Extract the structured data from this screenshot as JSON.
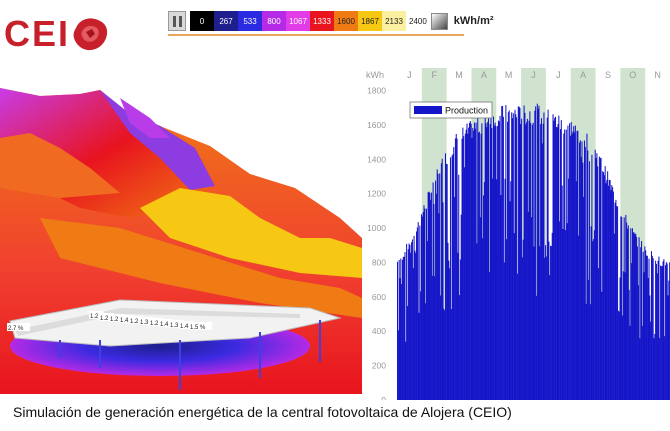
{
  "logo": {
    "text": "CEI",
    "brand_color": "#c8202a"
  },
  "legend": {
    "pause_icon": "pause-icon",
    "ticks": [
      "0",
      "267",
      "533",
      "800",
      "1067",
      "1333",
      "1600",
      "1867",
      "2133"
    ],
    "colors": [
      "#000000",
      "#1e1e8c",
      "#2a2ae0",
      "#b42ae6",
      "#e23ce8",
      "#e8141e",
      "#f07a14",
      "#f6c814",
      "#faf0a0"
    ],
    "text_colors": [
      "#ffffff",
      "#ffffff",
      "#ffffff",
      "#ffffff",
      "#ffffff",
      "#ffffff",
      "#222222",
      "#222222",
      "#222222"
    ],
    "last_tick": "2400",
    "unit": "kWh/m²",
    "icon": "gradient-square-icon"
  },
  "terrain": {
    "labels": [
      "2.7 %",
      "1.2",
      "1.2",
      "1.2",
      "1.4",
      "1.2",
      "1.3",
      "1.2",
      "1.4",
      "1.3",
      "1.4",
      "1.5 %"
    ]
  },
  "chart_data": {
    "type": "bar",
    "ylabel": "kWh",
    "yticks": [
      0,
      200,
      400,
      600,
      800,
      1000,
      1200,
      1400,
      1600,
      1800
    ],
    "ylim": [
      0,
      1850
    ],
    "months": [
      "J",
      "F",
      "M",
      "A",
      "M",
      "J",
      "J",
      "A",
      "S",
      "O",
      "N"
    ],
    "shaded_months": [
      "F",
      "A",
      "J",
      "A",
      "O"
    ],
    "legend_label": "Production",
    "bar_color": "#1414c8",
    "grid_color": "#cfe3cf",
    "series": [
      {
        "name": "Production",
        "envelope": [
          [
            0,
            830
          ],
          [
            10,
            900
          ],
          [
            20,
            1000
          ],
          [
            30,
            1120
          ],
          [
            40,
            1250
          ],
          [
            50,
            1380
          ],
          [
            60,
            1470
          ],
          [
            70,
            1550
          ],
          [
            80,
            1600
          ],
          [
            90,
            1630
          ],
          [
            100,
            1660
          ],
          [
            110,
            1690
          ],
          [
            120,
            1710
          ],
          [
            130,
            1720
          ],
          [
            140,
            1720
          ],
          [
            150,
            1715
          ],
          [
            160,
            1720
          ],
          [
            170,
            1725
          ],
          [
            180,
            1700
          ],
          [
            190,
            1680
          ],
          [
            200,
            1660
          ],
          [
            210,
            1640
          ],
          [
            220,
            1600
          ],
          [
            230,
            1560
          ],
          [
            240,
            1480
          ],
          [
            250,
            1380
          ],
          [
            260,
            1260
          ],
          [
            270,
            1140
          ],
          [
            280,
            1040
          ],
          [
            290,
            960
          ],
          [
            300,
            900
          ],
          [
            310,
            860
          ],
          [
            320,
            830
          ],
          [
            330,
            800
          ]
        ]
      }
    ]
  },
  "caption": "Simulación de generación energética de la central fotovoltaica de Alojera (CEIO)"
}
